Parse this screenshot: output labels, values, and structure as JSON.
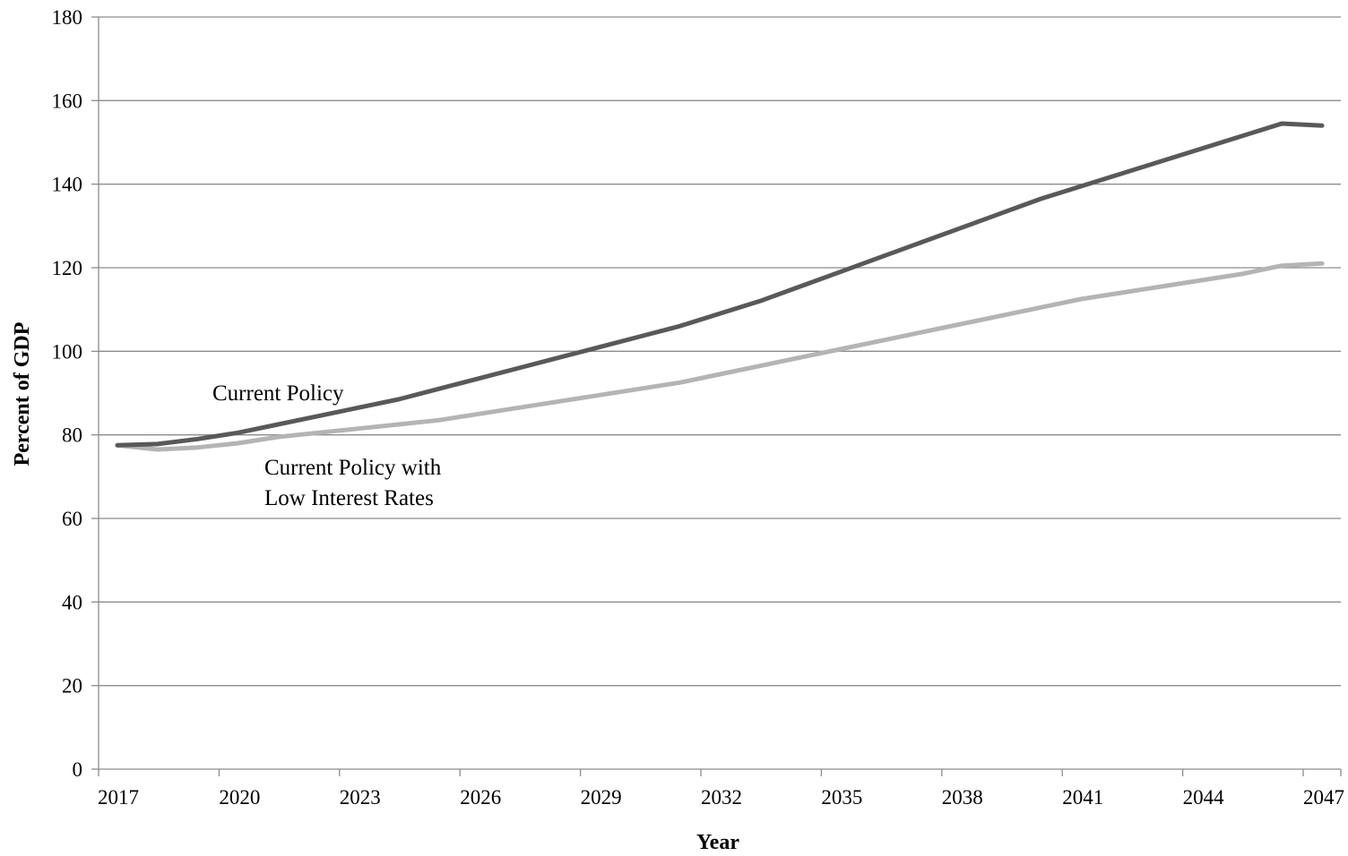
{
  "chart_data": {
    "type": "line",
    "xlabel": "Year",
    "ylabel": "Percent of GDP",
    "xlim": [
      2017,
      2047
    ],
    "ylim": [
      0,
      180
    ],
    "x_ticks": [
      "2017",
      "2020",
      "2023",
      "2026",
      "2029",
      "2032",
      "2035",
      "2038",
      "2041",
      "2044",
      "2047"
    ],
    "y_ticks": [
      "0",
      "20",
      "40",
      "60",
      "80",
      "100",
      "120",
      "140",
      "160",
      "180"
    ],
    "grid": "horizontal",
    "legend": "none",
    "x": [
      2017,
      2018,
      2019,
      2020,
      2021,
      2022,
      2023,
      2024,
      2025,
      2026,
      2027,
      2028,
      2029,
      2030,
      2031,
      2032,
      2033,
      2034,
      2035,
      2036,
      2037,
      2038,
      2039,
      2040,
      2041,
      2042,
      2043,
      2044,
      2045,
      2046,
      2047
    ],
    "series": [
      {
        "name": "Current Policy",
        "color": "#595959",
        "values": [
          77.5,
          77.8,
          79,
          80.5,
          82.5,
          84.5,
          86.5,
          88.5,
          91,
          93.5,
          96,
          98.5,
          101,
          103.5,
          106,
          109,
          112,
          115.5,
          119,
          122.5,
          126,
          129.5,
          133,
          136.5,
          139.5,
          142.5,
          145.5,
          148.5,
          151.5,
          154.5,
          154
        ]
      },
      {
        "name": "Current Policy with Low Interest Rates",
        "color": "#b4b4b4",
        "values": [
          77.5,
          76.5,
          77,
          78,
          79.5,
          80.5,
          81.5,
          82.5,
          83.5,
          85,
          86.5,
          88,
          89.5,
          91,
          92.5,
          94.5,
          96.5,
          98.5,
          100.5,
          102.5,
          104.5,
          106.5,
          108.5,
          110.5,
          112.5,
          114,
          115.5,
          117,
          118.5,
          120.5,
          121
        ]
      }
    ],
    "annotations": [
      {
        "text": "Current Policy",
        "series": 0
      },
      {
        "lines": [
          "Current Policy with",
          "Low Interest Rates"
        ],
        "series": 1
      }
    ]
  }
}
